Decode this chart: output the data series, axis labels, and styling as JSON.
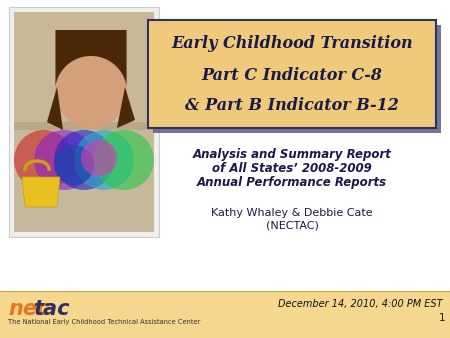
{
  "bg_color": "#ffffff",
  "footer_color": "#f5d78e",
  "title_box_color": "#f0c97a",
  "title_box_shadow_color": "#3a3a6a",
  "title_box_border_color": "#2e3060",
  "title_line1": "Early Childhood Transition",
  "title_line2": "Part C Indicator C-8",
  "title_line3": "& Part B Indicator B-12",
  "subtitle_line1": "Analysis and Summary Report",
  "subtitle_line2": "of All States’ 2008-2009",
  "subtitle_line3": "Annual Performance Reports",
  "author_line1": "Kathy Whaley & Debbie Cate",
  "author_line2": "(NECTAC)",
  "footer_date": "December 14, 2010, 4:00 PM EST",
  "footer_page": "1",
  "nectac_nec": "nec",
  "nectac_tac": "tac",
  "nec_color": "#e87722",
  "tac_color": "#2e3060",
  "nectac_sub": "The National Early Childhood Technical Assistance Center",
  "title_font_size": 11.5,
  "subtitle_font_size": 8.5,
  "author_font_size": 8,
  "footer_font_size": 7,
  "photo_border_color": "#e0ddd8",
  "photo_bg_color": "#c8b89a",
  "title_text_color": "#1a1a4a",
  "subtitle_text_color": "#1a1a4a",
  "footer_line_color": "#c8a84b"
}
